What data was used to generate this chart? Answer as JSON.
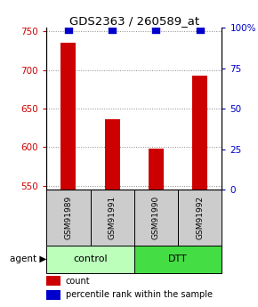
{
  "title": "GDS2363 / 260589_at",
  "samples": [
    "GSM91989",
    "GSM91991",
    "GSM91990",
    "GSM91992"
  ],
  "counts": [
    735,
    636,
    598,
    693
  ],
  "percentiles": [
    99,
    99,
    99,
    99
  ],
  "ylim_left": [
    545,
    755
  ],
  "ylim_right": [
    0,
    100
  ],
  "yticks_left": [
    550,
    600,
    650,
    700,
    750
  ],
  "yticks_right": [
    0,
    25,
    50,
    75,
    100
  ],
  "ytick_right_labels": [
    "0",
    "25",
    "50",
    "75",
    "100%"
  ],
  "bar_color": "#cc0000",
  "dot_color": "#0000cc",
  "groups": [
    {
      "label": "control",
      "indices": [
        0,
        1
      ],
      "color": "#bbffbb"
    },
    {
      "label": "DTT",
      "indices": [
        2,
        3
      ],
      "color": "#44dd44"
    }
  ],
  "agent_label": "agent",
  "legend_count_label": "count",
  "legend_pct_label": "percentile rank within the sample",
  "grid_color": "#888888",
  "sample_box_color": "#cccccc",
  "bar_width": 0.35,
  "dot_size": 30,
  "fig_width": 2.9,
  "fig_height": 3.45,
  "dpi": 100
}
